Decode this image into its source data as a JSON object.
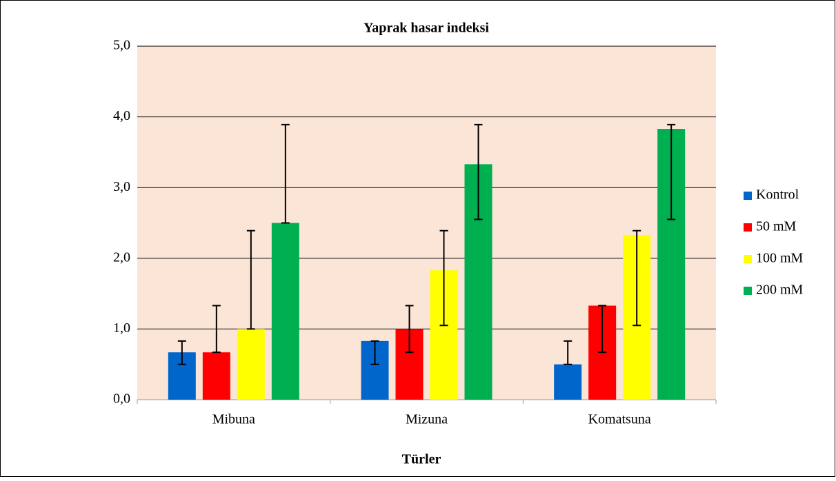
{
  "chart_data": {
    "type": "bar",
    "title": "Yaprak hasar indeksi",
    "xlabel": "Türler",
    "categories": [
      "Mibuna",
      "Mizuna",
      "Komatsuna"
    ],
    "series": [
      {
        "name": "Kontrol",
        "color": "#0066cc",
        "values": [
          0.67,
          0.83,
          0.5
        ],
        "error_minus": [
          0.17,
          0.33,
          0
        ],
        "error_plus": [
          0.16,
          0,
          0.33
        ]
      },
      {
        "name": "50 mM",
        "color": "#ff0000",
        "values": [
          0.67,
          1.0,
          1.33
        ],
        "error_minus": [
          0,
          0.33,
          0.66
        ],
        "error_plus": [
          0.66,
          0.33,
          0
        ]
      },
      {
        "name": "100 mM",
        "color": "#ffff00",
        "values": [
          1.0,
          1.83,
          2.33
        ],
        "error_minus": [
          0,
          0.78,
          1.28
        ],
        "error_plus": [
          1.39,
          0.56,
          0.06
        ]
      },
      {
        "name": "200 mM",
        "color": "#00b050",
        "values": [
          2.5,
          3.33,
          3.83
        ],
        "error_minus": [
          0,
          0.78,
          1.28
        ],
        "error_plus": [
          1.39,
          0.56,
          0.06
        ]
      }
    ],
    "ylim": [
      0,
      5
    ],
    "yticks": [
      {
        "value": 0,
        "label": "0,0"
      },
      {
        "value": 1,
        "label": "1,0"
      },
      {
        "value": 2,
        "label": "2,0"
      },
      {
        "value": 3,
        "label": "3,0"
      },
      {
        "value": 4,
        "label": "4,0"
      },
      {
        "value": 5,
        "label": "5,0"
      }
    ],
    "grid": true,
    "legend": "right",
    "plot_background": "#fbe5d6"
  }
}
